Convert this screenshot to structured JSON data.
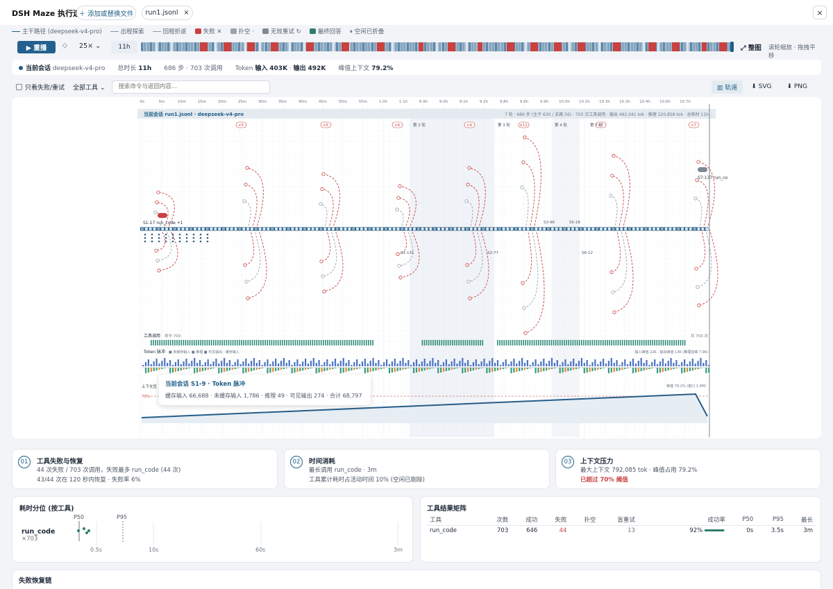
{
  "app": {
    "title": "DSH Maze 执行迷宫",
    "add_file": "＋ 添加或替换文件",
    "file_tab": "run1.jsonl",
    "file_close": "×",
    "close": "×"
  },
  "legend": [
    {
      "label": "主干路径 (deepseek-v4-pro)",
      "kind": "line",
      "color": "#1f5e87"
    },
    {
      "label": "出程探索",
      "kind": "line",
      "color": "#8a96a3"
    },
    {
      "label": "回程折返",
      "kind": "line",
      "color": "#8a96a3"
    },
    {
      "label": "失败 ✕",
      "kind": "box",
      "color": "#c94141"
    },
    {
      "label": "扑空 ·",
      "kind": "box",
      "color": "#9aa3ad"
    },
    {
      "label": "无效重试 ↻",
      "kind": "box",
      "color": "#7e8893"
    },
    {
      "label": "最终回答",
      "kind": "box",
      "color": "#2e7d6b"
    },
    {
      "label": "⏸ 空闲已折叠",
      "kind": "text",
      "color": "#5b6675"
    }
  ],
  "player": {
    "play": "▶ 重播",
    "step_icon": "◇",
    "speed": "25×",
    "time": "11h",
    "fit": "⤢ 整图",
    "hint": "滚轮缩放 · 拖拽平移"
  },
  "summary": {
    "session_label": "当前会话",
    "model": "deepseek-v4-pro",
    "dur_label": "总时长",
    "dur": "11h",
    "steps": "686 步 · 703 次调用",
    "token_label": "Token",
    "in_label": "输入",
    "in": "403K",
    "out_label": "输出",
    "out": "492K",
    "peak_label": "峰值上下文",
    "peak": "79.2%"
  },
  "filter": {
    "only_fail": "只看失败/重试",
    "tools": "全部工具",
    "search_placeholder": "搜索命令与返回内容...",
    "view": "轨道",
    "svg": "⬇ SVG",
    "png": "⬇ PNG"
  },
  "axis": [
    "-0s",
    "5m",
    "10m",
    "15m",
    "20m",
    "25m",
    "30m",
    "35m",
    "40m",
    "45m",
    "50m",
    "55m",
    "1.0h",
    "1.1h",
    "6.9h",
    "9.0h",
    "9.1h",
    "9.2h",
    "9.8h",
    "9.8h",
    "9.9h",
    "10.0h",
    "10.2h",
    "10.3h",
    "10.3h",
    "10.4h",
    "10.6h",
    "10.7h"
  ],
  "maze": {
    "header": "当前会话 run1.jsonl · deepseek-v4-pro",
    "header_right": "7 轮 · 686 步 (主干 630 / 支路 56) · 703 次工具调用 · 输出 492,041 tok · 推理 220,858 tok · 总耗时 11h",
    "start_label": "S1-17 run_code +1",
    "end_label": "S7-137 run_co",
    "rounds": [
      "第 2 轮",
      "第 3 轮",
      "第 4 轮",
      "第 7 轮"
    ],
    "fails": [
      "×5",
      "×5",
      "×4",
      "×4",
      "×11",
      "×7",
      "×7"
    ],
    "seg_labels": [
      "S1-131",
      "S2-77",
      "S3-96",
      "S5-18",
      "S6-12"
    ],
    "tool_label": "工具调用",
    "tool_count_label": "命令 703",
    "tool_right": "共 703 次",
    "token_label": "Token 脉冲",
    "token_legend": "■ 未缓存输入 ■ 推理 ■ 可见输出 · 缓存输入",
    "token_right": "输入峰值 22K · 输出峰值 13K (推理剪峰 7.9K)",
    "ctx_label": "上下文压",
    "ctx_right": "峰值 79.2% (窗口 1.0M)",
    "ctx70": "70%"
  },
  "tooltip": {
    "title": "当前会话 S1-9 · Token 脉冲",
    "body": "缓存输入 66,688 · 未缓存输入 1,786 · 推理 49 · 可见输出 274 · 合计 68,797"
  },
  "cards": [
    {
      "n": "01",
      "title": "工具失败与恢复",
      "l1": "44 次失败 / 703 次调用，失败最多 run_code (44 次)",
      "l2": "43/44 次在 120 秒内恢复 · 失败率 6%"
    },
    {
      "n": "02",
      "title": "时间消耗",
      "l1": "最长调用 run_code · 3m",
      "l2": "工具累计耗时占活动时间 10% (空闲已剔除)"
    },
    {
      "n": "03",
      "title": "上下文压力",
      "l1": "最大上下文 792,085 tok · 峰值占用 79.2%",
      "l2": "已超过 70% 阈值"
    }
  ],
  "latency": {
    "title": "耗时分位 (按工具)",
    "tool": "run_code",
    "count": "×703",
    "p50": "P50",
    "p95": "P95",
    "ticks": [
      "0.5s",
      "10s",
      "60s",
      "3m"
    ]
  },
  "matrix": {
    "title": "工具结果矩阵",
    "headers": [
      "工具",
      "次数",
      "成功",
      "失败",
      "扑空",
      "盲重试",
      "成功率",
      "P50",
      "P95",
      "最长"
    ],
    "row": {
      "tool": "run_code",
      "count": "703",
      "ok": "646",
      "fail": "44",
      "miss": "",
      "retry": "13",
      "rate": "92%",
      "rate_value": 0.92,
      "p50": "0s",
      "p95": "3.5s",
      "max": "3m"
    }
  },
  "recovery": {
    "title": "失败恢复链"
  }
}
